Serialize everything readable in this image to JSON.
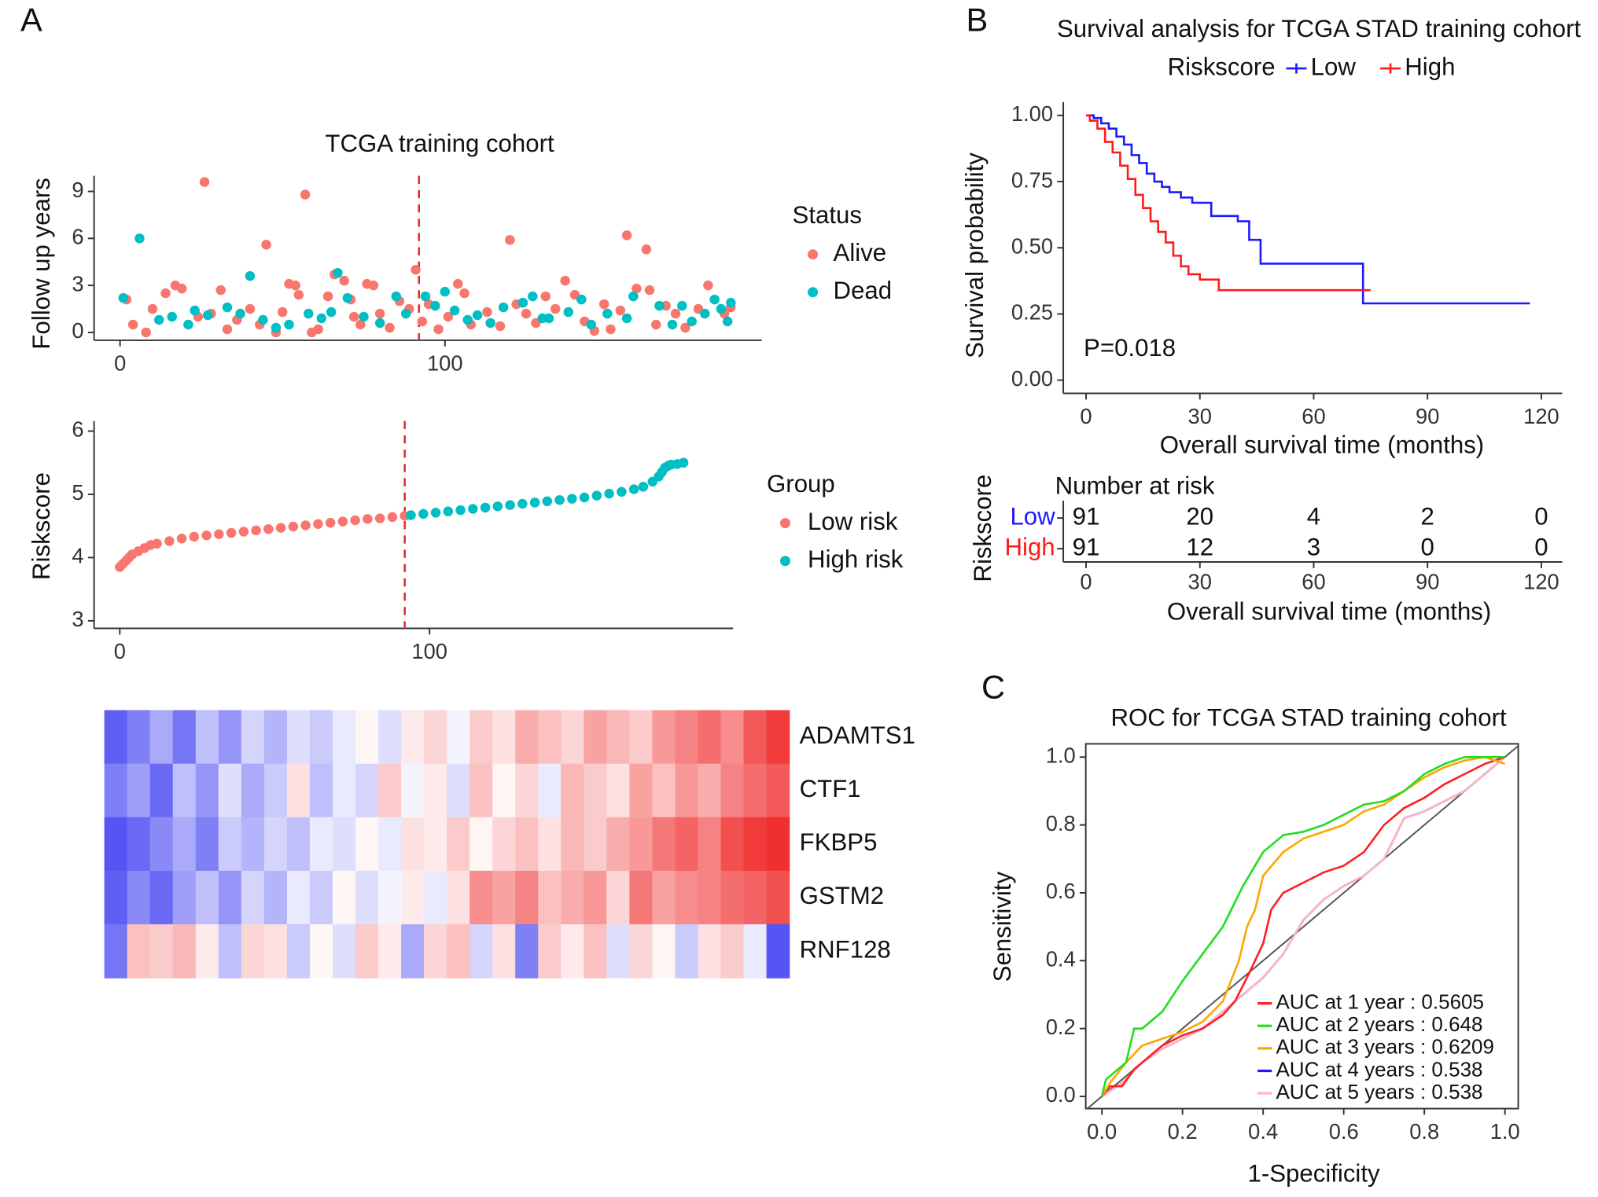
{
  "panel_labels": [
    "A",
    "B",
    "C"
  ],
  "chart_data": [
    {
      "type": "scatter",
      "title": "TCGA training cohort",
      "ylabel": "Follow up years",
      "xlim": [
        -8,
        197.5
      ],
      "ylim": [
        -0.5,
        10
      ],
      "xticks": [
        0,
        100
      ],
      "yticks": [
        0,
        3,
        6,
        9
      ],
      "vlines": [
        92
      ],
      "vline_color": "#e03030",
      "legend_title": "Status",
      "series": [
        {
          "name": "Alive",
          "color": "#F8766D",
          "x": [
            2,
            4,
            8,
            10,
            14,
            17,
            19,
            24,
            26,
            28,
            31,
            33,
            36,
            40,
            43,
            45,
            48,
            50,
            52,
            54,
            55,
            57,
            59,
            61,
            64,
            66,
            69,
            71,
            72,
            74,
            76,
            78,
            80,
            83,
            86,
            89,
            91,
            93,
            95,
            98,
            101,
            104,
            106,
            108,
            113,
            117,
            120,
            122,
            125,
            128,
            131,
            134,
            137,
            140,
            143,
            146,
            149,
            151,
            154,
            156,
            159,
            162,
            163,
            165,
            168,
            171,
            174,
            178,
            181,
            186,
            188
          ],
          "values": [
            2.1,
            0.5,
            0,
            1.5,
            2.5,
            3,
            2.8,
            1,
            9.6,
            1.2,
            2.7,
            0.2,
            0.8,
            1.5,
            0.5,
            5.6,
            0,
            1.3,
            3.1,
            3,
            2.4,
            8.8,
            0,
            0.2,
            2.3,
            3.7,
            3.3,
            2.1,
            1,
            0.5,
            3.1,
            3,
            1.2,
            0.3,
            2,
            1.5,
            4,
            0.7,
            1.8,
            0.2,
            1,
            3.1,
            2.5,
            0.5,
            1.3,
            0.4,
            5.9,
            1.8,
            1.2,
            0.6,
            2.3,
            1.5,
            3.3,
            2.4,
            0.7,
            0.1,
            1.8,
            0.2,
            1.4,
            6.2,
            2.8,
            5.3,
            2.7,
            0.5,
            1.7,
            1.2,
            0.3,
            1.5,
            3,
            1.2,
            1.6
          ]
        },
        {
          "name": "Dead",
          "color": "#00BFC4",
          "x": [
            1,
            6,
            12,
            16,
            21,
            23,
            27,
            33,
            37,
            40,
            44,
            48,
            52,
            58,
            62,
            65,
            67,
            70,
            75,
            80,
            85,
            88,
            94,
            97,
            100,
            103,
            107,
            110,
            114,
            118,
            124,
            127,
            130,
            132,
            138,
            142,
            145,
            150,
            156,
            158,
            166,
            170,
            173,
            176,
            180,
            183,
            185,
            187,
            188
          ],
          "values": [
            2.2,
            6,
            0.8,
            1,
            0.5,
            1.4,
            1.1,
            1.6,
            1.2,
            3.6,
            0.8,
            0.3,
            0.5,
            1.2,
            0.9,
            1.3,
            3.8,
            2.2,
            1,
            0.6,
            2.3,
            1.2,
            2.3,
            1.7,
            2.6,
            1.4,
            0.8,
            1.1,
            0.6,
            1.6,
            1.9,
            2.3,
            0.9,
            0.9,
            1.3,
            2.1,
            0.5,
            1.2,
            0.9,
            2.3,
            1.7,
            0.5,
            1.7,
            0.7,
            1.2,
            2.1,
            1.5,
            0.7,
            1.9
          ]
        }
      ]
    },
    {
      "type": "scatter",
      "ylabel": "Riskscore",
      "xlim": [
        -8.3,
        198
      ],
      "ylim": [
        2.88,
        6.16
      ],
      "xticks": [
        0,
        100
      ],
      "yticks": [
        3,
        4,
        5,
        6
      ],
      "vlines": [
        92
      ],
      "vline_color": "#e03030",
      "legend_title": "Group",
      "series": [
        {
          "name": "Low risk",
          "color": "#F8766D",
          "x": [
            0,
            1,
            2,
            3,
            4,
            6,
            8,
            10,
            12,
            16,
            20,
            24,
            28,
            32,
            36,
            40,
            44,
            48,
            52,
            56,
            60,
            64,
            68,
            72,
            76,
            80,
            84,
            88,
            92
          ],
          "values": [
            3.85,
            3.9,
            3.95,
            4.0,
            4.05,
            4.1,
            4.15,
            4.2,
            4.22,
            4.26,
            4.3,
            4.33,
            4.35,
            4.37,
            4.39,
            4.41,
            4.43,
            4.45,
            4.47,
            4.49,
            4.51,
            4.53,
            4.55,
            4.57,
            4.59,
            4.61,
            4.62,
            4.64,
            4.66
          ]
        },
        {
          "name": "High risk",
          "color": "#00BFC4",
          "x": [
            94,
            98,
            102,
            106,
            110,
            114,
            118,
            122,
            126,
            130,
            134,
            138,
            142,
            146,
            150,
            154,
            158,
            162,
            166,
            169,
            172,
            174,
            175,
            176,
            177,
            178,
            180,
            182
          ],
          "values": [
            4.67,
            4.69,
            4.71,
            4.73,
            4.75,
            4.77,
            4.79,
            4.81,
            4.83,
            4.85,
            4.87,
            4.89,
            4.91,
            4.93,
            4.95,
            4.98,
            5.01,
            5.04,
            5.08,
            5.12,
            5.2,
            5.28,
            5.35,
            5.42,
            5.45,
            5.47,
            5.48,
            5.5
          ]
        }
      ]
    },
    {
      "type": "heatmap",
      "rows": [
        "ADAMTS1",
        "CTF1",
        "FKBP5",
        "GSTM2",
        "RNF128"
      ],
      "colors": [
        "#2a2af0",
        "#ffffff",
        "#f03030"
      ],
      "zlim": [
        -2,
        2
      ],
      "values": [
        [
          -1.5,
          -1.2,
          -0.8,
          -1.3,
          -0.6,
          -1,
          -0.4,
          -0.7,
          -0.3,
          -0.5,
          -0.2,
          0.1,
          -0.3,
          0.2,
          0.4,
          -0.1,
          0.5,
          0.3,
          0.8,
          0.6,
          0.4,
          0.9,
          0.7,
          0.5,
          1,
          1.2,
          1.4,
          1.1,
          1.6,
          1.9
        ],
        [
          -1.2,
          -0.9,
          -1.4,
          -0.6,
          -1,
          -0.3,
          -0.8,
          -0.5,
          0.3,
          -0.6,
          -0.2,
          -0.4,
          0.5,
          -0.1,
          0.2,
          -0.3,
          0.6,
          0.1,
          0.4,
          -0.2,
          0.7,
          0.5,
          0.3,
          0.9,
          0.6,
          1,
          0.8,
          1.2,
          1.4,
          1.6
        ],
        [
          -1.6,
          -1.4,
          -1.1,
          -0.8,
          -1.2,
          -0.5,
          -0.7,
          -0.4,
          -0.6,
          -0.2,
          -0.3,
          0.1,
          -0.2,
          0.3,
          0.2,
          0.5,
          0.1,
          0.4,
          0.6,
          0.3,
          0.7,
          0.5,
          0.8,
          1,
          1.3,
          1.5,
          1.2,
          1.7,
          1.9,
          2
        ],
        [
          -1.5,
          -1.1,
          -1.4,
          -0.9,
          -0.6,
          -1,
          -0.4,
          -0.7,
          -0.2,
          -0.5,
          0.1,
          -0.3,
          -0.1,
          0.2,
          -0.2,
          0.3,
          1.1,
          0.9,
          1.2,
          0.6,
          0.8,
          1,
          0.4,
          1.3,
          0.9,
          1.1,
          1.2,
          1.4,
          1.5,
          1.7
        ],
        [
          -1.3,
          0.6,
          0.5,
          0.7,
          0.2,
          -0.6,
          0.4,
          0.3,
          -0.5,
          0.1,
          -0.3,
          0.5,
          0.2,
          -0.8,
          0.4,
          0.6,
          -0.4,
          0.3,
          -1.2,
          0.5,
          0.2,
          0.6,
          -0.3,
          0.4,
          0.1,
          -0.5,
          0.3,
          0.5,
          -0.2,
          -1.6
        ]
      ]
    },
    {
      "type": "survival",
      "title": "Survival analysis for TCGA STAD training cohort",
      "legend_title": "Riskscore",
      "ylabel": "Survival probability",
      "xlabel": "Overall survival time (months)",
      "annotation": "P=0.018",
      "step": true,
      "xlim": [
        -6,
        125.5
      ],
      "ylim": [
        -0.05,
        1.05
      ],
      "xticks": [
        0,
        30,
        60,
        90,
        120
      ],
      "yticks": [
        {
          "value": 0,
          "label": "0.00"
        },
        {
          "value": 0.25,
          "label": "0.25"
        },
        {
          "value": 0.5,
          "label": "0.50"
        },
        {
          "value": 0.75,
          "label": "0.75"
        },
        {
          "value": 1,
          "label": "1.00"
        }
      ],
      "series": [
        {
          "name": "Low",
          "color": "#1a1aff",
          "x": [
            0,
            2,
            4,
            6,
            8,
            10,
            12,
            14,
            16,
            18,
            20,
            22,
            25,
            28,
            33,
            40,
            43,
            46,
            50,
            60,
            72,
            73,
            117
          ],
          "values": [
            1,
            0.99,
            0.97,
            0.95,
            0.92,
            0.89,
            0.85,
            0.82,
            0.78,
            0.75,
            0.73,
            0.71,
            0.69,
            0.67,
            0.62,
            0.6,
            0.53,
            0.44,
            0.44,
            0.44,
            0.44,
            0.29,
            0.29
          ]
        },
        {
          "name": "High",
          "color": "#ff1a1a",
          "x": [
            0,
            1,
            3,
            5,
            7,
            9,
            11,
            13,
            15,
            17,
            19,
            21,
            23,
            25,
            27,
            30,
            35,
            40,
            75
          ],
          "values": [
            1,
            0.98,
            0.95,
            0.9,
            0.86,
            0.81,
            0.76,
            0.7,
            0.65,
            0.6,
            0.56,
            0.52,
            0.47,
            0.43,
            0.4,
            0.38,
            0.34,
            0.34,
            0.34
          ]
        }
      ],
      "risk_table": {
        "title": "Number at risk",
        "ylabel": "Riskscore",
        "xlabel": "Overall survival time (months)",
        "times": [
          0,
          30,
          60,
          90,
          120
        ],
        "rows": [
          {
            "name": "Low",
            "color": "#1a1aff",
            "values": [
              91,
              20,
              4,
              2,
              0
            ]
          },
          {
            "name": "High",
            "color": "#ff1a1a",
            "values": [
              91,
              12,
              3,
              0,
              0
            ]
          }
        ]
      }
    },
    {
      "type": "roc",
      "title": "ROC for TCGA STAD training cohort",
      "ylabel": "Sensitivity",
      "xlabel": "1-Specificity",
      "diagonal": true,
      "xlim": [
        -0.04,
        1.033
      ],
      "ylim": [
        -0.036,
        1.039
      ],
      "xticks": [
        {
          "value": 0,
          "label": "0.0"
        },
        0.2,
        0.4,
        0.6,
        0.8,
        {
          "value": 1,
          "label": "1.0"
        }
      ],
      "yticks": [
        {
          "value": 0,
          "label": "0.0"
        },
        0.2,
        0.4,
        0.6,
        0.8,
        {
          "value": 1,
          "label": "1.0"
        }
      ],
      "series": [
        {
          "name": "AUC at 1 year : 0.5605",
          "color": "#ff2020",
          "x": [
            0,
            0.02,
            0.05,
            0.08,
            0.1,
            0.15,
            0.2,
            0.25,
            0.3,
            0.33,
            0.36,
            0.38,
            0.4,
            0.42,
            0.45,
            0.5,
            0.55,
            0.6,
            0.65,
            0.7,
            0.75,
            0.8,
            0.85,
            0.9,
            0.95,
            1
          ],
          "values": [
            0,
            0.03,
            0.03,
            0.08,
            0.1,
            0.15,
            0.18,
            0.2,
            0.24,
            0.28,
            0.35,
            0.4,
            0.45,
            0.55,
            0.6,
            0.63,
            0.66,
            0.68,
            0.72,
            0.8,
            0.85,
            0.88,
            0.92,
            0.95,
            0.98,
            1
          ]
        },
        {
          "name": "AUC at 2 years : 0.648",
          "color": "#22dd22",
          "x": [
            0,
            0.01,
            0.06,
            0.08,
            0.1,
            0.15,
            0.2,
            0.25,
            0.3,
            0.35,
            0.38,
            0.4,
            0.45,
            0.5,
            0.55,
            0.6,
            0.65,
            0.7,
            0.75,
            0.8,
            0.85,
            0.9,
            0.95,
            1
          ],
          "values": [
            0,
            0.05,
            0.1,
            0.2,
            0.2,
            0.25,
            0.34,
            0.42,
            0.5,
            0.62,
            0.68,
            0.72,
            0.77,
            0.78,
            0.8,
            0.83,
            0.86,
            0.87,
            0.9,
            0.95,
            0.98,
            1,
            1,
            1
          ]
        },
        {
          "name": "AUC at 3 years : 0.6209",
          "color": "#ffa500",
          "x": [
            0,
            0.02,
            0.06,
            0.1,
            0.15,
            0.2,
            0.25,
            0.3,
            0.34,
            0.36,
            0.38,
            0.4,
            0.45,
            0.5,
            0.55,
            0.6,
            0.65,
            0.7,
            0.75,
            0.8,
            0.85,
            0.9,
            0.95,
            1
          ],
          "values": [
            0,
            0.04,
            0.1,
            0.15,
            0.17,
            0.19,
            0.22,
            0.28,
            0.4,
            0.5,
            0.55,
            0.65,
            0.72,
            0.76,
            0.78,
            0.8,
            0.84,
            0.86,
            0.9,
            0.94,
            0.97,
            0.99,
            1,
            0.98
          ]
        },
        {
          "name": "AUC at 4 years : 0.538",
          "color": "#1a1aff",
          "x": [
            0,
            0.05,
            0.1,
            0.15,
            0.2,
            0.25,
            0.3,
            0.35,
            0.4,
            0.45,
            0.5,
            0.55,
            0.6,
            0.65,
            0.7,
            0.75,
            0.8,
            0.85,
            0.9,
            0.95,
            1
          ],
          "values": [
            0,
            0.04,
            0.1,
            0.14,
            0.17,
            0.2,
            0.25,
            0.3,
            0.35,
            0.42,
            0.52,
            0.58,
            0.62,
            0.65,
            0.7,
            0.82,
            0.84,
            0.87,
            0.9,
            0.95,
            1
          ]
        },
        {
          "name": "AUC at 5 years : 0.538",
          "color": "#ffb6c1",
          "x": [
            0,
            0.05,
            0.1,
            0.15,
            0.2,
            0.25,
            0.3,
            0.35,
            0.4,
            0.45,
            0.5,
            0.55,
            0.6,
            0.65,
            0.7,
            0.75,
            0.8,
            0.85,
            0.9,
            0.95,
            1
          ],
          "values": [
            0,
            0.04,
            0.1,
            0.14,
            0.17,
            0.2,
            0.25,
            0.3,
            0.35,
            0.42,
            0.52,
            0.58,
            0.62,
            0.65,
            0.7,
            0.82,
            0.84,
            0.87,
            0.9,
            0.95,
            1
          ]
        }
      ]
    }
  ]
}
